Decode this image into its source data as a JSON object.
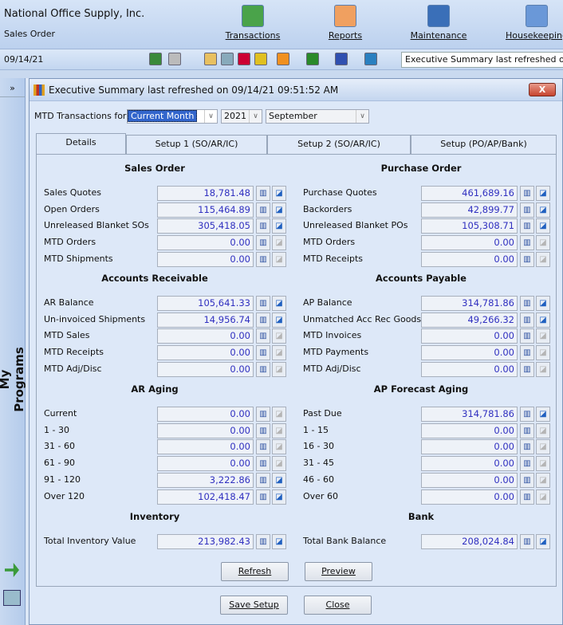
{
  "app": {
    "company": "National Office Supply, Inc.",
    "module": "Sales Order",
    "date": "09/14/21",
    "status": "Executive Summary last refreshed on",
    "menu": [
      {
        "label": "Transactions",
        "icon": "transactions-icon",
        "color": "#4aa34a"
      },
      {
        "label": "Reports",
        "icon": "reports-icon",
        "color": "#f0a060"
      },
      {
        "label": "Maintenance",
        "icon": "maintenance-icon",
        "color": "#3a6fb8"
      },
      {
        "label": "Housekeeping",
        "icon": "housekeeping-icon",
        "color": "#6a98d8"
      }
    ],
    "toolbar_icons": [
      "users-icon",
      "printer-icon",
      "folder-icon",
      "calculator-icon",
      "chart-icon",
      "crystal-icon",
      "outlook-icon",
      "excel-icon",
      "word-icon",
      "globe-icon"
    ]
  },
  "sidebar": {
    "expand": "»",
    "title": "My Programs"
  },
  "dialog": {
    "title": "Executive Summary last refreshed on 09/14/21 09:51:52 AM",
    "close": "X",
    "mtd_label": "MTD Transactions for",
    "period": "Current Month",
    "year": "2021",
    "month": "September",
    "tabs": [
      "Details",
      "Setup 1 (SO/AR/IC)",
      "Setup 2 (SO/AR/IC)",
      "Setup (PO/AP/Bank)"
    ],
    "sections": [
      {
        "left": {
          "title": "Sales Order",
          "rows": [
            [
              "Sales Quotes",
              "18,781.48",
              true
            ],
            [
              "Open Orders",
              "115,464.89",
              true
            ],
            [
              "Unreleased Blanket SOs",
              "305,418.05",
              true
            ],
            [
              "MTD Orders",
              "0.00",
              false
            ],
            [
              "MTD Shipments",
              "0.00",
              false
            ]
          ]
        },
        "right": {
          "title": "Purchase Order",
          "rows": [
            [
              "Purchase Quotes",
              "461,689.16",
              true
            ],
            [
              "Backorders",
              "42,899.77",
              true
            ],
            [
              "Unreleased Blanket POs",
              "105,308.71",
              true
            ],
            [
              "MTD Orders",
              "0.00",
              false
            ],
            [
              "MTD Receipts",
              "0.00",
              false
            ]
          ]
        }
      },
      {
        "left": {
          "title": "Accounts Receivable",
          "rows": [
            [
              "AR Balance",
              "105,641.33",
              true
            ],
            [
              "Un-invoiced Shipments",
              "14,956.74",
              true
            ],
            [
              "MTD Sales",
              "0.00",
              false
            ],
            [
              "MTD Receipts",
              "0.00",
              false
            ],
            [
              "MTD Adj/Disc",
              "0.00",
              false
            ]
          ]
        },
        "right": {
          "title": "Accounts Payable",
          "rows": [
            [
              "AP Balance",
              "314,781.86",
              true
            ],
            [
              "Unmatched Acc Rec Goods",
              "49,266.32",
              true
            ],
            [
              "MTD Invoices",
              "0.00",
              false
            ],
            [
              "MTD Payments",
              "0.00",
              false
            ],
            [
              "MTD Adj/Disc",
              "0.00",
              false
            ]
          ]
        }
      },
      {
        "left": {
          "title": "AR Aging",
          "rows": [
            [
              "Current",
              "0.00",
              false
            ],
            [
              "1 - 30",
              "0.00",
              false
            ],
            [
              "31 - 60",
              "0.00",
              false
            ],
            [
              "61 - 90",
              "0.00",
              false
            ],
            [
              "91 - 120",
              "3,222.86",
              true
            ],
            [
              "Over 120",
              "102,418.47",
              true
            ]
          ]
        },
        "right": {
          "title": "AP Forecast Aging",
          "rows": [
            [
              "Past Due",
              "314,781.86",
              true
            ],
            [
              "1 - 15",
              "0.00",
              false
            ],
            [
              "16 - 30",
              "0.00",
              false
            ],
            [
              "31 - 45",
              "0.00",
              false
            ],
            [
              "46 - 60",
              "0.00",
              false
            ],
            [
              "Over 60",
              "0.00",
              false
            ]
          ]
        }
      },
      {
        "left": {
          "title": "Inventory",
          "rows": [
            [
              "Total Inventory Value",
              "213,982.43",
              true
            ]
          ]
        },
        "right": {
          "title": "Bank",
          "rows": [
            [
              "Total Bank Balance",
              "208,024.84",
              true
            ]
          ]
        }
      }
    ],
    "buttons": {
      "refresh": "Refresh",
      "preview": "Preview",
      "save_setup": "Save Setup",
      "close": "Close"
    }
  }
}
